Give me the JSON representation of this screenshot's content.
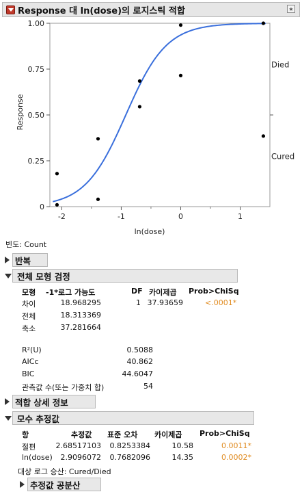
{
  "title": "Response 대 ln(dose)의 로지스틱 적합",
  "freq_label": "빈도: Count",
  "chart_data": {
    "type": "scatter",
    "xlabel": "ln(dose)",
    "ylabel": "Response",
    "xlim": [
      -2.2,
      1.5
    ],
    "ylim": [
      0,
      1
    ],
    "x_ticks": [
      "-2",
      "-1",
      "0",
      "1"
    ],
    "y_ticks": [
      "0",
      "0.25",
      "0.50",
      "0.75",
      "1.00"
    ],
    "right_labels": [
      "Died",
      "Cured"
    ],
    "points": [
      {
        "x": -2.08,
        "y": 0.18
      },
      {
        "x": -2.08,
        "y": 0.01
      },
      {
        "x": -1.39,
        "y": 0.37
      },
      {
        "x": -1.39,
        "y": 0.04
      },
      {
        "x": -0.69,
        "y": 0.685
      },
      {
        "x": -0.69,
        "y": 0.545
      },
      {
        "x": 0.0,
        "y": 0.99
      },
      {
        "x": 0.0,
        "y": 0.715
      },
      {
        "x": 1.39,
        "y": 1.0
      },
      {
        "x": 1.39,
        "y": 0.385
      }
    ],
    "curve": {
      "intercept": 2.68517103,
      "slope": 2.9096072
    }
  },
  "sections": {
    "iter": "반복",
    "whole_model": "전체 모형 검정",
    "fit_details": "적합 상세 정보",
    "param": "모수 추정값",
    "cov": "추정값 공분산"
  },
  "whole_model": {
    "headers": [
      "모형",
      "-1*로그 가능도",
      "DF",
      "카이제곱",
      "Prob>ChiSq"
    ],
    "rows": [
      {
        "model": "차이",
        "loglik": "18.968295",
        "df": "1",
        "chisq": "37.93659",
        "prob": "<.0001*"
      },
      {
        "model": "전체",
        "loglik": "18.313369",
        "df": "",
        "chisq": "",
        "prob": ""
      },
      {
        "model": "축소",
        "loglik": "37.281664",
        "df": "",
        "chisq": "",
        "prob": ""
      }
    ],
    "stats": [
      {
        "label": "R²(U)",
        "value": "0.5088"
      },
      {
        "label": "AICc",
        "value": "40.862"
      },
      {
        "label": "BIC",
        "value": "44.6047"
      },
      {
        "label": "관측값 수(또는 가중치 합)",
        "value": "54"
      }
    ]
  },
  "params": {
    "headers": [
      "항",
      "추정값",
      "표준 오차",
      "카이제곱",
      "Prob>ChiSq"
    ],
    "rows": [
      {
        "term": "절편",
        "est": "2.68517103",
        "se": "0.8253384",
        "chisq": "10.58",
        "prob": "0.0011*"
      },
      {
        "term": "ln(dose)",
        "est": "2.9096072",
        "se": "0.7682096",
        "chisq": "14.35",
        "prob": "0.0002*"
      }
    ],
    "target_note": "대상 로그 승산: Cured/Died"
  }
}
